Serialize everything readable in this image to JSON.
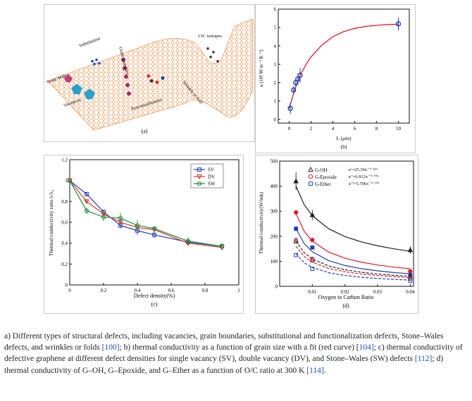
{
  "panels": {
    "a": {
      "label": "(a)",
      "annotations": {
        "substitution": "Substitution",
        "stone_wales": "Stone-Wales",
        "vacancies": "Vacancies",
        "grain_boundary": "Grain boundary",
        "functionalization": "Functionalization",
        "wrinkle": "Wrinkle or fold",
        "isotopes": "13C isotopes"
      }
    },
    "b": {
      "label": "(b)",
      "xlabel": "L (μm)",
      "ylabel": "κ (10³ W m⁻¹ K⁻¹)"
    },
    "c": {
      "label": "(c)",
      "xlabel": "Defect density(%)",
      "ylabel": "Thermal conductivity ratio λ/λ₀"
    },
    "d": {
      "label": "(d)",
      "xlabel": "Oxygen to Carbon Ratio",
      "ylabel": "Thermal conductivity(W/mk)",
      "fits": [
        "κ'=25.39x⁻⁰·⁵²⁹",
        "κ''=6.912x⁻⁰·⁷⁰⁹",
        "κ'''=5.706x⁻⁰·⁷⁰¹"
      ]
    }
  },
  "caption": {
    "p1": "a) Different types of structural defects, including vacancies, grain boundaries, substitutional and functionalization defects, Stone–Wales defects, and wrinkles or folds ",
    "ref1": "[100]",
    "p2": "; b) thermal conductivity as a function of grain size with a fit (red curve) [",
    "ref2": "104]",
    "p3": "; c) thermal conductivity of defective graphene at different defect densities for single vacancy (SV), double vacancy (DV), and Stone–Wales (SW) defects ",
    "ref3": "[112]",
    "p4": "; d) thermal conductivity of G–OH, G–Epoxide, and G–Ether as a function of O/C ratio at 300 K ",
    "ref4": "[114]",
    "p5": "."
  },
  "chart_data": [
    {
      "panel": "b",
      "type": "scatter",
      "title": "",
      "xlabel": "L (μm)",
      "ylabel": "κ (10³ W m⁻¹ K⁻¹)",
      "xlim": [
        -1,
        11
      ],
      "ylim": [
        -0.2,
        6
      ],
      "xticks": [
        0,
        2,
        4,
        6,
        8,
        10
      ],
      "yticks": [
        0,
        1,
        2,
        3,
        4,
        5,
        6
      ],
      "colors": {
        "points": "#1f3fb5",
        "fit": "#e21a2a"
      },
      "points": [
        {
          "x": 0.1,
          "y": 0.6,
          "err": 0.3
        },
        {
          "x": 0.4,
          "y": 1.6,
          "err": 0.2
        },
        {
          "x": 0.6,
          "y": 2.0,
          "err": 0.25
        },
        {
          "x": 0.8,
          "y": 2.2,
          "err": 0.3
        },
        {
          "x": 1.0,
          "y": 2.4,
          "err": 0.4
        },
        {
          "x": 10.0,
          "y": 5.2,
          "err": 0.35
        }
      ],
      "fit": {
        "x": [
          0,
          0.5,
          1,
          1.5,
          2,
          3,
          4,
          5,
          6,
          7,
          8,
          9,
          10
        ],
        "y": [
          0.6,
          1.6,
          2.4,
          2.95,
          3.4,
          4.05,
          4.5,
          4.78,
          4.95,
          5.06,
          5.12,
          5.16,
          5.18
        ]
      }
    },
    {
      "panel": "c",
      "type": "line",
      "title": "",
      "xlabel": "Defect density(%)",
      "ylabel": "Thermal conductivity ratio λ/λ₀",
      "xlim": [
        0,
        1
      ],
      "ylim": [
        0,
        1.2
      ],
      "xticks": [
        0,
        0.2,
        0.4,
        0.6,
        0.8,
        1
      ],
      "yticks": [
        0,
        0.2,
        0.4,
        0.6,
        0.8,
        1,
        1.2
      ],
      "legend_position": "top-right",
      "series": [
        {
          "name": "SV",
          "color": "#1f3fb5",
          "marker": "square",
          "x": [
            0,
            0.1,
            0.2,
            0.3,
            0.4,
            0.5,
            0.7,
            0.9
          ],
          "y": [
            1.0,
            0.87,
            0.7,
            0.57,
            0.52,
            0.48,
            0.41,
            0.37
          ],
          "err": [
            0,
            0.02,
            0.02,
            0.03,
            0.04,
            0.03,
            0.03,
            0.03
          ]
        },
        {
          "name": "DV",
          "color": "#d9342b",
          "marker": "triangle-down",
          "x": [
            0,
            0.1,
            0.2,
            0.3,
            0.4,
            0.5,
            0.7,
            0.9
          ],
          "y": [
            1.0,
            0.8,
            0.68,
            0.6,
            0.55,
            0.53,
            0.4,
            0.36
          ],
          "err": [
            0,
            0.02,
            0.02,
            0.03,
            0.03,
            0.02,
            0.03,
            0.03
          ]
        },
        {
          "name": "SW",
          "color": "#1a8a3a",
          "marker": "circle",
          "x": [
            0,
            0.1,
            0.2,
            0.3,
            0.4,
            0.5,
            0.7,
            0.9
          ],
          "y": [
            1.0,
            0.71,
            0.65,
            0.64,
            0.57,
            0.54,
            0.42,
            0.37
          ],
          "err": [
            0,
            0.03,
            0.04,
            0.05,
            0.05,
            0.02,
            0.04,
            0.03
          ]
        }
      ]
    },
    {
      "panel": "d",
      "type": "scatter",
      "title": "",
      "xlabel": "Oxygen to Carbon Ratio",
      "ylabel": "Thermal conductivity(W/mk)",
      "xlim": [
        0,
        0.041
      ],
      "ylim": [
        0,
        500
      ],
      "xticks": [
        0.01,
        0.02,
        0.03,
        0.04
      ],
      "yticks": [
        0,
        100,
        200,
        300,
        400,
        500
      ],
      "legend_position": "top",
      "series": [
        {
          "name": "G-OH",
          "color": "#222222",
          "marker": "triangle",
          "x": [
            0.005,
            0.01,
            0.04
          ],
          "y": [
            420,
            285,
            145
          ],
          "err": [
            35,
            20,
            15
          ],
          "fit_y": [
            400,
            280,
            140
          ],
          "fit_style": "solid"
        },
        {
          "name": "G-Epoxide",
          "color": "#e21a2a",
          "marker": "circle",
          "x": [
            0.005,
            0.01,
            0.04
          ],
          "y": [
            295,
            185,
            60
          ],
          "fit_y": [
            290,
            170,
            70
          ],
          "fit_style": "solid"
        },
        {
          "name": "G-Ether",
          "color": "#1f3fb5",
          "marker": "square",
          "x": [
            0.005,
            0.01,
            0.04
          ],
          "y": [
            230,
            155,
            45
          ],
          "fit_y": [
            230,
            140,
            50
          ],
          "fit_style": "solid"
        },
        {
          "name": "G-OH (dashed)",
          "color": "#222222",
          "marker": "triangle",
          "x": [
            0.005,
            0.01,
            0.04
          ],
          "y": [
            180,
            105,
            40
          ],
          "fit_y": [
            180,
            100,
            40
          ],
          "fit_style": "dashed"
        },
        {
          "name": "G-Epoxide (dashed)",
          "color": "#e21a2a",
          "marker": "circle",
          "x": [
            0.005,
            0.01,
            0.04
          ],
          "y": [
            185,
            110,
            30
          ],
          "fit_y": [
            160,
            95,
            35
          ],
          "fit_style": "dashed"
        },
        {
          "name": "G-Ether (dashed)",
          "color": "#1f3fb5",
          "marker": "square",
          "x": [
            0.005,
            0.01,
            0.04
          ],
          "y": [
            125,
            70,
            22
          ],
          "fit_y": [
            130,
            75,
            25
          ],
          "fit_style": "dashed"
        }
      ]
    }
  ]
}
